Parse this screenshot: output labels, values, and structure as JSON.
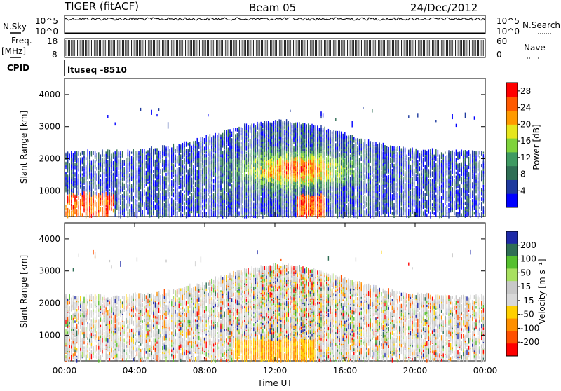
{
  "header": {
    "title": "TIGER (fitACF)",
    "beam": "Beam 05",
    "date": "24/Dec/2012"
  },
  "top_panels": {
    "nsky_label": "N.Sky",
    "nsky_ticks": [
      "10^5",
      "10^0"
    ],
    "nsearch_label": "N.Search",
    "nsearch_ticks": [
      "10^5",
      "10^0"
    ],
    "freq_label": "Freq.",
    "freq_unit": "[MHz]",
    "freq_ticks": [
      "18",
      "8"
    ],
    "nave_label": "Nave",
    "nave_ticks": [
      "60",
      "0"
    ],
    "cpid_label": "CPID",
    "cpid_text": "ltuseq -8510"
  },
  "colors": {
    "power_scale": [
      "#0000ff",
      "#1e3a9e",
      "#2f6e55",
      "#3f9a62",
      "#7fd33c",
      "#e6e61e",
      "#ff9a00",
      "#ff5a00",
      "#ff0000"
    ],
    "velocity_scale": [
      "#1e2aa8",
      "#2f6e55",
      "#56c02e",
      "#a8e060",
      "#c8c8c8",
      "#d8d8d8",
      "#ffd000",
      "#ff9000",
      "#ff5000",
      "#ff0000"
    ]
  },
  "chart_data": [
    {
      "type": "heatmap",
      "panel": "power",
      "ylabel": "Slant Range [km]",
      "yticks": [
        "1000",
        "2000",
        "3000",
        "4000"
      ],
      "ylim": [
        200,
        4500
      ],
      "xlim": [
        "00:00",
        "00:00"
      ],
      "colorbar_label": "Power [dB]",
      "colorbar_ticks": [
        "4",
        "8",
        "12",
        "16",
        "20",
        "24",
        "28"
      ],
      "colorbar_range": [
        0,
        30
      ]
    },
    {
      "type": "heatmap",
      "panel": "velocity",
      "xlabel": "Time UT",
      "ylabel": "Slant Range [km]",
      "yticks": [
        "1000",
        "2000",
        "3000",
        "4000"
      ],
      "ylim": [
        200,
        4500
      ],
      "xticks": [
        "00:00",
        "04:00",
        "08:00",
        "12:00",
        "16:00",
        "20:00",
        "00:00"
      ],
      "colorbar_label": "Velocity [m s⁻¹]",
      "colorbar_ticks": [
        "200",
        "100",
        "50",
        "15",
        "-15",
        "-50",
        "-100",
        "-200"
      ],
      "colorbar_range": [
        -250,
        250
      ]
    }
  ]
}
